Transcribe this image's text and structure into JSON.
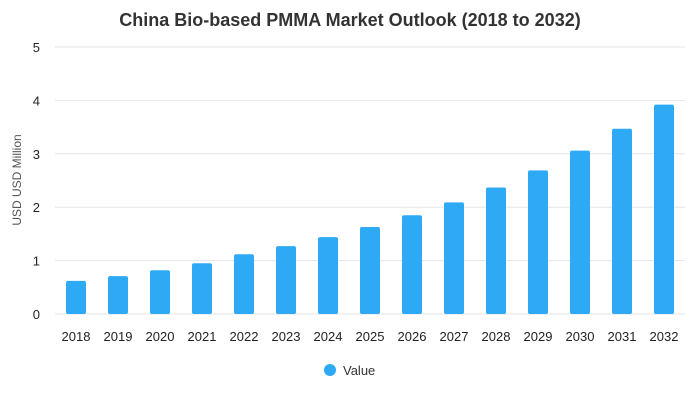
{
  "chart_data": {
    "type": "bar",
    "title": "China Bio-based PMMA Market Outlook (2018 to 2032)",
    "xlabel": "",
    "ylabel": "USD USD Million",
    "categories": [
      "2018",
      "2019",
      "2020",
      "2021",
      "2022",
      "2023",
      "2024",
      "2025",
      "2026",
      "2027",
      "2028",
      "2029",
      "2030",
      "2031",
      "2032"
    ],
    "series": [
      {
        "name": "Value",
        "color": "#2eaaf5",
        "values": [
          0.62,
          0.71,
          0.82,
          0.95,
          1.12,
          1.27,
          1.44,
          1.63,
          1.85,
          2.09,
          2.37,
          2.69,
          3.06,
          3.47,
          3.92
        ]
      }
    ],
    "ylim": [
      0,
      5
    ],
    "yticks": [
      "0",
      "1",
      "2",
      "3",
      "4",
      "5"
    ],
    "grid": true,
    "legend_position": "bottom-center"
  }
}
